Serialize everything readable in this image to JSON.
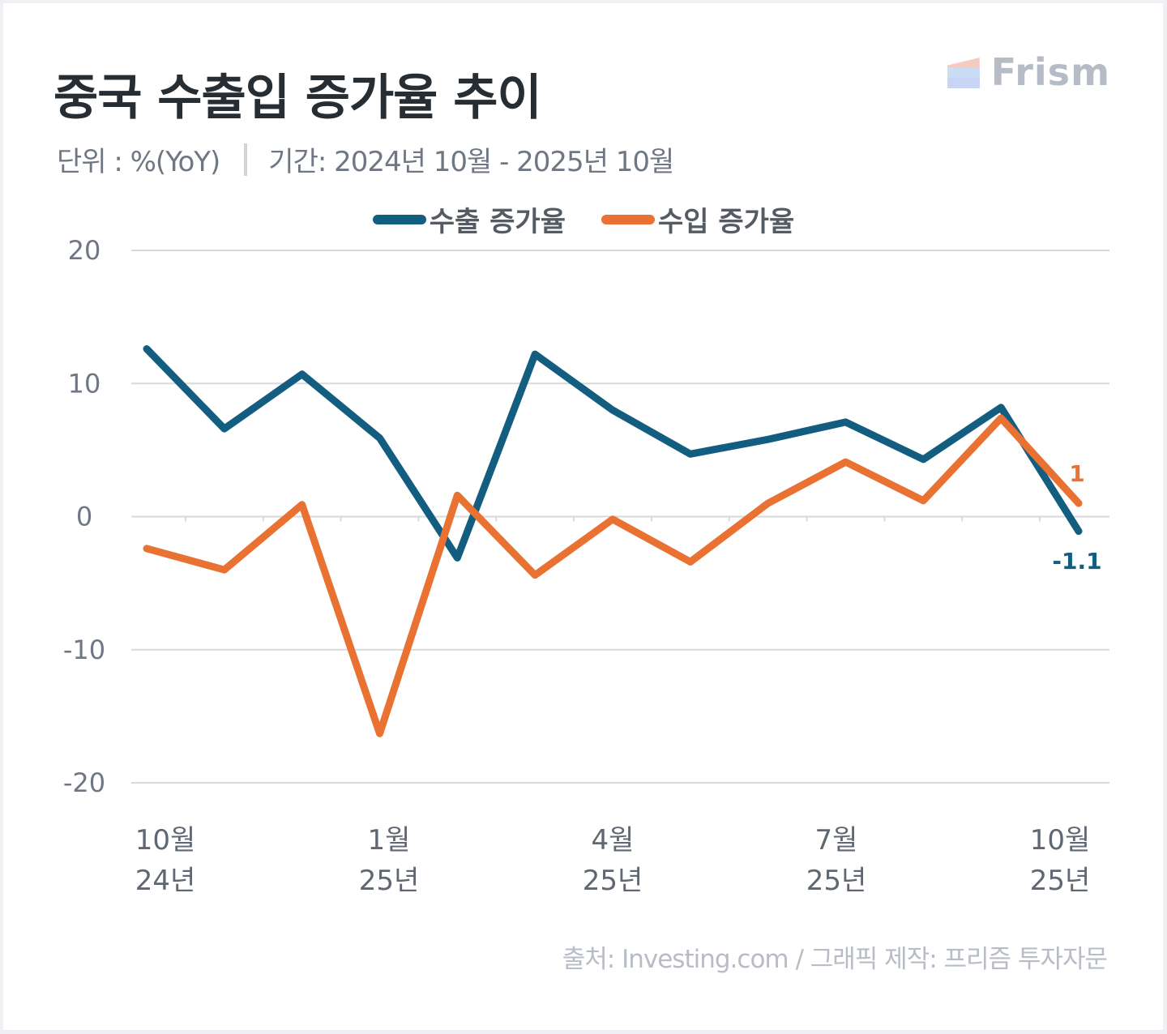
{
  "header": {
    "title": "중국 수출입 증가율 추이",
    "subtitle_unit": "단위 : %(YoY)",
    "subtitle_period": "기간: 2024년 10월 - 2025년 10월",
    "logo_text": "Frism"
  },
  "footer": {
    "source": "출처: Investing.com / 그래픽 제작: 프리즘 투자자문"
  },
  "colors": {
    "export": "#135d80",
    "import": "#e97132",
    "grid": "#d9d9d9",
    "title": "#262d33"
  },
  "chart_data": {
    "type": "line",
    "title": "중국 수출입 증가율 추이",
    "xlabel": "",
    "ylabel": "%(YoY)",
    "ylim": [
      -20,
      20
    ],
    "yticks": [
      20,
      10,
      0,
      -10,
      -20
    ],
    "ytick_labels": [
      "20",
      "10",
      "0",
      "-10",
      "-20"
    ],
    "grid": true,
    "legend_position": "top-center",
    "x": [
      "2024-10",
      "2024-11",
      "2024-12",
      "2025-01",
      "2025-02",
      "2025-03",
      "2025-04",
      "2025-05",
      "2025-06",
      "2025-07",
      "2025-08",
      "2025-09",
      "2025-10"
    ],
    "xtick_labels": [
      {
        "index": 0,
        "month": "10월",
        "year": "24년"
      },
      {
        "index": 3,
        "month": "1월",
        "year": "25년"
      },
      {
        "index": 6,
        "month": "4월",
        "year": "25년"
      },
      {
        "index": 9,
        "month": "7월",
        "year": "25년"
      },
      {
        "index": 12,
        "month": "10월",
        "year": "25년"
      }
    ],
    "series": [
      {
        "name": "수출 증가율",
        "color": "#135d80",
        "values": [
          12.6,
          6.6,
          10.7,
          5.9,
          -3.1,
          12.2,
          8.0,
          4.7,
          5.8,
          7.1,
          4.3,
          8.2,
          -1.1
        ],
        "end_label": "-1.1"
      },
      {
        "name": "수입 증가율",
        "color": "#e97132",
        "values": [
          -2.4,
          -4.0,
          0.9,
          -16.3,
          1.6,
          -4.4,
          -0.2,
          -3.4,
          1.0,
          4.1,
          1.2,
          7.4,
          1.0
        ],
        "end_label": "1"
      }
    ]
  }
}
